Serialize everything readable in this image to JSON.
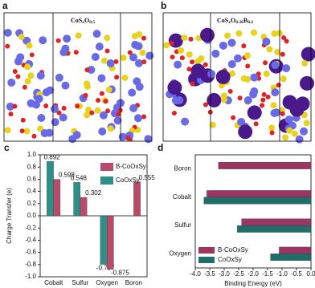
{
  "panels": {
    "a": {
      "label": "a",
      "formula": [
        {
          "text": "CoS"
        },
        {
          "sub": "x"
        },
        {
          "text": "O"
        },
        {
          "sub": "0.5"
        }
      ]
    },
    "b": {
      "label": "b",
      "formula": [
        {
          "text": "CoS"
        },
        {
          "sub": "x"
        },
        {
          "text": "O"
        },
        {
          "sub": "0.36"
        },
        {
          "text": "B"
        },
        {
          "sub": "0.2"
        }
      ]
    }
  },
  "chart_data": [
    {
      "type": "bar",
      "panel_label": "c",
      "ylabel": "Charge Transfer (e)",
      "categories": [
        "Cobalt",
        "Sulfur",
        "Oxygen",
        "Boron"
      ],
      "series": [
        {
          "name": "CoOxSy",
          "color": "#2e8f86",
          "values": [
            0.892,
            0.548,
            -0.797,
            null
          ]
        },
        {
          "name": "B-CoOxSy",
          "color": "#b84a6a",
          "values": [
            0.598,
            0.302,
            -0.875,
            0.555
          ]
        }
      ],
      "legend_order": [
        1,
        0
      ],
      "ylim": [
        -1.0,
        1.0
      ],
      "yticks": [
        {
          "value": -1.0,
          "label": "-1.0"
        },
        {
          "value": -0.8,
          "label": "-0.8"
        },
        {
          "value": -0.6,
          "label": "-0.6"
        },
        {
          "value": -0.4,
          "label": "-0.4"
        },
        {
          "value": -0.2,
          "label": "-0.2"
        },
        {
          "value": 0,
          "label": "0.0"
        },
        {
          "value": 0.2,
          "label": "0.2"
        },
        {
          "value": 0.4,
          "label": "0.4"
        },
        {
          "value": 0.6,
          "label": "0.6"
        },
        {
          "value": 0.8,
          "label": "0.8"
        },
        {
          "value": 1.0,
          "label": "1.0"
        }
      ],
      "legend": "upper right"
    },
    {
      "type": "barh",
      "panel_label": "d",
      "xlabel": "Binding Energy (eV)",
      "categories": [
        "Boron",
        "Cobalt",
        "Sulfur",
        "Oxygen"
      ],
      "series": [
        {
          "name": "B-CoOxSy",
          "color": "#9c3560",
          "values": [
            -3.2,
            -3.6,
            -2.4,
            -1.1
          ]
        },
        {
          "name": "CoOxSy",
          "color": "#1f6e6a",
          "values": [
            null,
            -3.7,
            -2.55,
            -1.4
          ]
        }
      ],
      "legend_order": [
        0,
        1
      ],
      "xlim": [
        -4.0,
        0.0
      ],
      "xticks": [
        {
          "value": -4.0,
          "label": "-4.0"
        },
        {
          "value": -3.5,
          "label": "-3.5"
        },
        {
          "value": -3.0,
          "label": "-3.0"
        },
        {
          "value": -2.5,
          "label": "-2.5"
        },
        {
          "value": -2.0,
          "label": "-2.0"
        },
        {
          "value": -1.5,
          "label": "-1.5"
        },
        {
          "value": -1.0,
          "label": "-1.0"
        },
        {
          "value": -0.5,
          "label": "-0.5"
        },
        {
          "value": 0,
          "label": "0.0"
        }
      ],
      "legend": "lower left"
    }
  ]
}
